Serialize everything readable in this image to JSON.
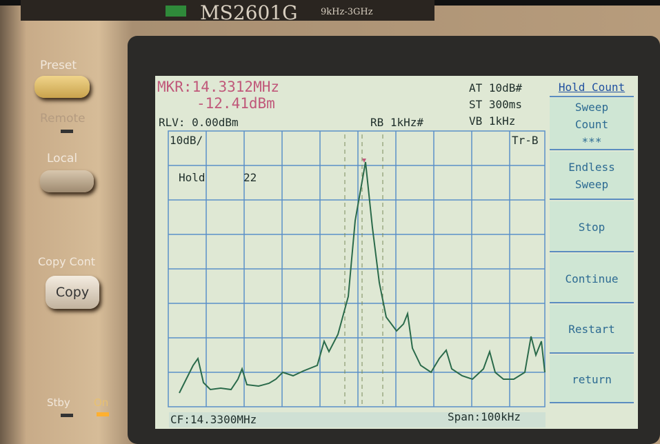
{
  "brand": {
    "model": "MS2601G",
    "range": "9kHz-3GHz"
  },
  "buttons": {
    "preset": "Preset",
    "remote": "Remote",
    "local": "Local",
    "copy_cont": "Copy Cont",
    "copy": "Copy",
    "stby": "Stby",
    "on": "On"
  },
  "screen": {
    "marker_freq": "MKR:14.3312MHz",
    "marker_level": "-12.41dBm",
    "ref_level": "RLV: 0.00dBm",
    "rbw": "RB 1kHz#",
    "atten": "AT 10dB#",
    "sweep_time": "ST 300ms",
    "vbw": "VB 1kHz",
    "scale": "10dB/",
    "trace": "Tr-B",
    "hold_label": "Hold",
    "hold_count": "22",
    "center_freq": "CF:14.3300MHz",
    "span": "Span:100kHz"
  },
  "softkeys": {
    "header": "Hold Count",
    "keys": [
      [
        "Sweep",
        "Count",
        "***"
      ],
      [
        "Endless",
        "Sweep"
      ],
      [
        "Stop"
      ],
      [
        "Continue"
      ],
      [
        "Restart"
      ],
      [
        "return"
      ]
    ]
  }
}
